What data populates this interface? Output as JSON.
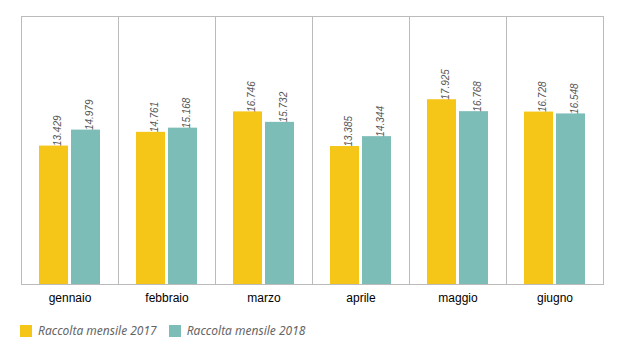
{
  "chart_data": {
    "type": "bar",
    "categories": [
      "gennaio",
      "febbraio",
      "marzo",
      "aprile",
      "maggio",
      "giugno"
    ],
    "series": [
      {
        "name": "Raccolta mensile 2017",
        "color": "#F5C518",
        "values": [
          13429,
          14761,
          16746,
          13385,
          17925,
          16728
        ],
        "value_labels": [
          "13.429",
          "14.761",
          "16.746",
          "13.385",
          "17.925",
          "16.728"
        ]
      },
      {
        "name": "Raccolta mensile 2018",
        "color": "#7DBDB8",
        "values": [
          14979,
          15168,
          15732,
          14344,
          16768,
          16548
        ],
        "value_labels": [
          "14.979",
          "15.168",
          "15.732",
          "14.344",
          "16.768",
          "16.548"
        ]
      }
    ],
    "ylim": [
      0,
      26000
    ],
    "yticks": [],
    "grid": false,
    "data_labels": true,
    "tick_labels": "x",
    "legend": "bottom"
  }
}
